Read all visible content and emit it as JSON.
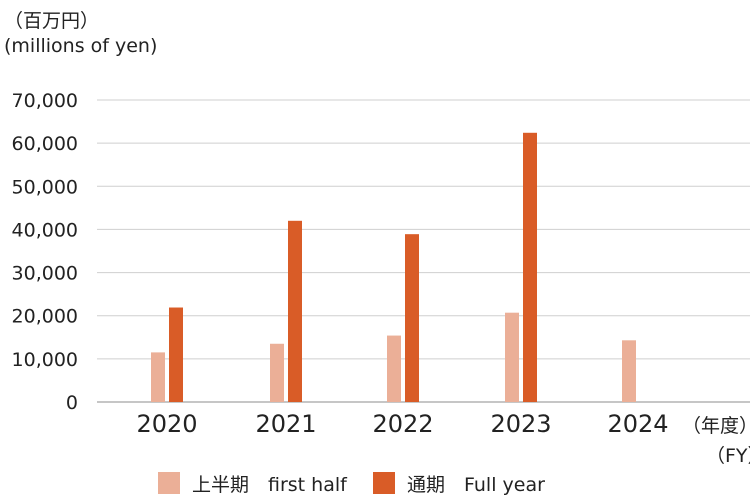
{
  "unit_label_jp": "（百万円）",
  "unit_label_en": "(millions of yen)",
  "x_unit_jp": "（年度）",
  "x_unit_en": "（FY）",
  "colors": {
    "first_half": "#EBAF97",
    "full_year": "#D95C27",
    "grid": "#cfcfcf",
    "axis": "#8c8c8c"
  },
  "legend": {
    "first_half": "上半期　first half",
    "full_year": "通期　Full year"
  },
  "chart_data": {
    "type": "bar",
    "categories": [
      "2020",
      "2021",
      "2022",
      "2023",
      "2024"
    ],
    "series": [
      {
        "name": "上半期　first half",
        "values": [
          11500,
          13500,
          15400,
          20700,
          14300
        ]
      },
      {
        "name": "通期　Full year",
        "values": [
          21900,
          42000,
          38900,
          62400,
          null
        ]
      }
    ],
    "ylim": [
      0,
      70000
    ],
    "yticks": [
      0,
      10000,
      20000,
      30000,
      40000,
      50000,
      60000,
      70000
    ],
    "ytick_labels": [
      "0",
      "10,000",
      "20,000",
      "30,000",
      "40,000",
      "50,000",
      "60,000",
      "70,000"
    ],
    "grid": true,
    "legend_position": "bottom"
  }
}
